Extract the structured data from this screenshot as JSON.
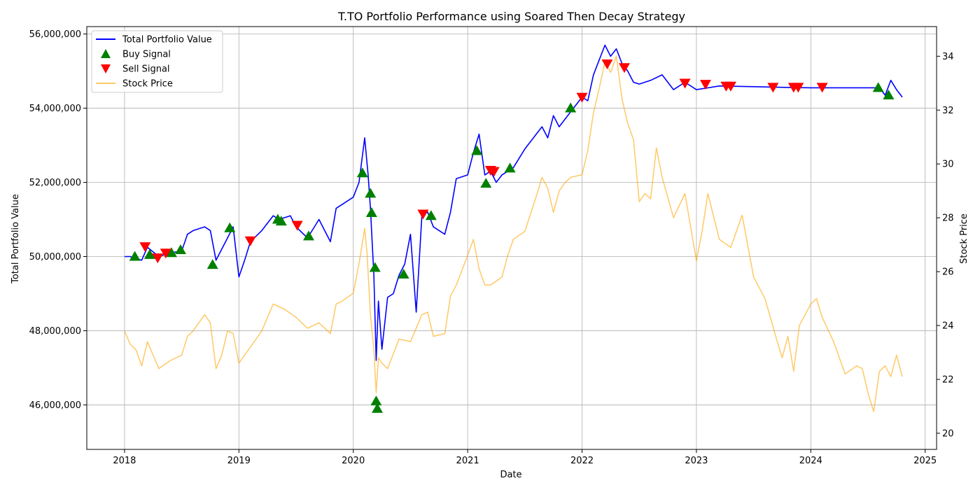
{
  "chart_data": {
    "type": "line",
    "title": "T.TO Portfolio Performance using Soared Then Decay Strategy",
    "xlabel": "Date",
    "ylabel_left": "Total Portfolio Value",
    "ylabel_right": "Stock Price",
    "x_ticks": [
      "2018",
      "2019",
      "2020",
      "2021",
      "2022",
      "2023",
      "2024",
      "2025"
    ],
    "y_left_ticks": [
      "46,000,000",
      "48,000,000",
      "50,000,000",
      "52,000,000",
      "54,000,000",
      "56,000,000"
    ],
    "y_left_tick_values": [
      46000000,
      48000000,
      50000000,
      52000000,
      54000000,
      56000000
    ],
    "y_right_ticks": [
      "20",
      "22",
      "24",
      "26",
      "28",
      "30",
      "32",
      "34"
    ],
    "y_right_tick_values": [
      20,
      22,
      24,
      26,
      28,
      30,
      32,
      34
    ],
    "xlim": [
      2017.67,
      2025.1
    ],
    "ylim_left": [
      44800000,
      56200000
    ],
    "ylim_right": [
      19.4,
      35.1
    ],
    "grid": true,
    "legend_position": "top-left",
    "colors": {
      "portfolio": "#0000ff",
      "buy": "#008000",
      "sell": "#ff0000",
      "stock": "#ffa500"
    },
    "legend": [
      {
        "label": "Total Portfolio Value",
        "kind": "line",
        "color": "#0000ff"
      },
      {
        "label": "Buy Signal",
        "kind": "triangle-up",
        "color": "#008000"
      },
      {
        "label": "Sell Signal",
        "kind": "triangle-down",
        "color": "#ff0000"
      },
      {
        "label": "Stock Price",
        "kind": "line",
        "color": "#ffa500"
      }
    ],
    "series": [
      {
        "name": "Total Portfolio Value",
        "axis": "left",
        "x": [
          2018.0,
          2018.05,
          2018.1,
          2018.15,
          2018.2,
          2018.3,
          2018.4,
          2018.5,
          2018.55,
          2018.6,
          2018.7,
          2018.75,
          2018.8,
          2018.9,
          2018.95,
          2019.0,
          2019.05,
          2019.1,
          2019.2,
          2019.3,
          2019.35,
          2019.45,
          2019.5,
          2019.6,
          2019.7,
          2019.8,
          2019.85,
          2019.9,
          2020.0,
          2020.05,
          2020.1,
          2020.13,
          2020.15,
          2020.18,
          2020.2,
          2020.22,
          2020.25,
          2020.3,
          2020.35,
          2020.4,
          2020.45,
          2020.5,
          2020.55,
          2020.6,
          2020.65,
          2020.7,
          2020.8,
          2020.85,
          2020.9,
          2021.0,
          2021.05,
          2021.1,
          2021.15,
          2021.2,
          2021.25,
          2021.3,
          2021.35,
          2021.4,
          2021.5,
          2021.6,
          2021.65,
          2021.7,
          2021.75,
          2021.8,
          2021.9,
          2022.0,
          2022.05,
          2022.1,
          2022.15,
          2022.2,
          2022.25,
          2022.3,
          2022.35,
          2022.4,
          2022.45,
          2022.5,
          2022.6,
          2022.7,
          2022.8,
          2022.9,
          2023.0,
          2023.2,
          2023.5,
          2023.8,
          2024.0,
          2024.3,
          2024.55,
          2024.6,
          2024.65,
          2024.7,
          2024.75,
          2024.8
        ],
        "values": [
          50000000,
          50000000,
          49950000,
          49900000,
          50250000,
          50000000,
          50100000,
          50150000,
          50600000,
          50700000,
          50800000,
          50700000,
          49900000,
          50500000,
          50800000,
          49450000,
          49900000,
          50400000,
          50700000,
          51100000,
          51000000,
          51100000,
          50800000,
          50500000,
          51000000,
          50400000,
          51300000,
          51400000,
          51600000,
          52000000,
          53200000,
          52200000,
          51300000,
          49500000,
          47200000,
          48800000,
          47500000,
          48900000,
          49000000,
          49500000,
          49800000,
          50600000,
          48500000,
          51100000,
          51200000,
          50800000,
          50600000,
          51200000,
          52100000,
          52200000,
          52800000,
          53300000,
          52200000,
          52300000,
          52000000,
          52200000,
          52300000,
          52400000,
          52900000,
          53300000,
          53500000,
          53200000,
          53800000,
          53500000,
          53900000,
          54300000,
          54200000,
          54900000,
          55300000,
          55700000,
          55400000,
          55600000,
          55200000,
          55000000,
          54700000,
          54650000,
          54750000,
          54900000,
          54500000,
          54700000,
          54500000,
          54600000,
          54580000,
          54560000,
          54550000,
          54550000,
          54550000,
          54550000,
          54350000,
          54750000,
          54500000,
          54300000
        ]
      },
      {
        "name": "Stock Price",
        "axis": "right",
        "x": [
          2018.0,
          2018.05,
          2018.1,
          2018.15,
          2018.2,
          2018.3,
          2018.4,
          2018.5,
          2018.55,
          2018.6,
          2018.7,
          2018.75,
          2018.8,
          2018.85,
          2018.9,
          2018.95,
          2019.0,
          2019.1,
          2019.2,
          2019.3,
          2019.4,
          2019.5,
          2019.6,
          2019.7,
          2019.8,
          2019.85,
          2019.9,
          2020.0,
          2020.05,
          2020.1,
          2020.12,
          2020.15,
          2020.18,
          2020.2,
          2020.22,
          2020.25,
          2020.3,
          2020.4,
          2020.5,
          2020.6,
          2020.65,
          2020.7,
          2020.8,
          2020.85,
          2020.9,
          2021.0,
          2021.05,
          2021.1,
          2021.15,
          2021.2,
          2021.3,
          2021.35,
          2021.4,
          2021.5,
          2021.6,
          2021.65,
          2021.7,
          2021.75,
          2021.8,
          2021.85,
          2021.9,
          2022.0,
          2022.05,
          2022.1,
          2022.15,
          2022.2,
          2022.25,
          2022.3,
          2022.35,
          2022.4,
          2022.45,
          2022.5,
          2022.55,
          2022.6,
          2022.65,
          2022.7,
          2022.8,
          2022.9,
          2023.0,
          2023.05,
          2023.1,
          2023.2,
          2023.3,
          2023.4,
          2023.5,
          2023.6,
          2023.7,
          2023.75,
          2023.8,
          2023.85,
          2023.9,
          2024.0,
          2024.05,
          2024.1,
          2024.2,
          2024.3,
          2024.4,
          2024.45,
          2024.5,
          2024.55,
          2024.6,
          2024.65,
          2024.7,
          2024.75,
          2024.8
        ],
        "values": [
          23.8,
          23.3,
          23.1,
          22.5,
          23.4,
          22.4,
          22.7,
          22.9,
          23.6,
          23.8,
          24.4,
          24.1,
          22.4,
          22.9,
          23.8,
          23.7,
          22.6,
          23.2,
          23.8,
          24.8,
          24.6,
          24.3,
          23.9,
          24.1,
          23.7,
          24.8,
          24.9,
          25.2,
          26.3,
          27.6,
          26.7,
          24.4,
          23.1,
          21.5,
          22.8,
          22.6,
          22.4,
          23.5,
          23.4,
          24.4,
          24.5,
          23.6,
          23.7,
          25.1,
          25.5,
          26.6,
          27.2,
          26.1,
          25.5,
          25.5,
          25.8,
          26.6,
          27.2,
          27.5,
          28.8,
          29.5,
          29.1,
          28.2,
          29.0,
          29.3,
          29.5,
          29.6,
          30.5,
          31.9,
          32.8,
          33.8,
          33.4,
          34.0,
          32.4,
          31.5,
          30.9,
          28.6,
          28.9,
          28.7,
          30.6,
          29.5,
          28.0,
          28.9,
          26.4,
          27.5,
          28.9,
          27.2,
          26.9,
          28.1,
          25.8,
          25.0,
          23.5,
          22.8,
          23.6,
          22.3,
          24.0,
          24.8,
          25.0,
          24.3,
          23.4,
          22.2,
          22.5,
          22.4,
          21.5,
          20.8,
          22.3,
          22.5,
          22.1,
          22.9,
          22.1
        ]
      }
    ],
    "buy_signals": [
      {
        "x": 2018.09,
        "y": 50000000
      },
      {
        "x": 2018.22,
        "y": 50050000
      },
      {
        "x": 2018.41,
        "y": 50100000
      },
      {
        "x": 2018.49,
        "y": 50180000
      },
      {
        "x": 2018.77,
        "y": 49780000
      },
      {
        "x": 2018.92,
        "y": 50770000
      },
      {
        "x": 2019.34,
        "y": 51000000
      },
      {
        "x": 2019.37,
        "y": 50950000
      },
      {
        "x": 2019.61,
        "y": 50550000
      },
      {
        "x": 2020.08,
        "y": 52250000
      },
      {
        "x": 2020.15,
        "y": 51700000
      },
      {
        "x": 2020.16,
        "y": 51180000
      },
      {
        "x": 2020.19,
        "y": 49700000
      },
      {
        "x": 2020.2,
        "y": 46100000
      },
      {
        "x": 2020.21,
        "y": 45900000
      },
      {
        "x": 2020.44,
        "y": 49520000
      },
      {
        "x": 2020.68,
        "y": 51100000
      },
      {
        "x": 2021.08,
        "y": 52850000
      },
      {
        "x": 2021.16,
        "y": 51970000
      },
      {
        "x": 2021.37,
        "y": 52380000
      },
      {
        "x": 2021.9,
        "y": 54000000
      },
      {
        "x": 2024.59,
        "y": 54550000
      },
      {
        "x": 2024.68,
        "y": 54350000
      }
    ],
    "sell_signals": [
      {
        "x": 2018.18,
        "y": 50270000
      },
      {
        "x": 2018.29,
        "y": 49970000
      },
      {
        "x": 2018.36,
        "y": 50100000
      },
      {
        "x": 2019.1,
        "y": 50430000
      },
      {
        "x": 2019.51,
        "y": 50850000
      },
      {
        "x": 2020.61,
        "y": 51150000
      },
      {
        "x": 2021.2,
        "y": 52330000
      },
      {
        "x": 2021.23,
        "y": 52300000
      },
      {
        "x": 2022.0,
        "y": 54300000
      },
      {
        "x": 2022.22,
        "y": 55200000
      },
      {
        "x": 2022.37,
        "y": 55100000
      },
      {
        "x": 2022.9,
        "y": 54680000
      },
      {
        "x": 2023.08,
        "y": 54650000
      },
      {
        "x": 2023.26,
        "y": 54600000
      },
      {
        "x": 2023.3,
        "y": 54600000
      },
      {
        "x": 2023.67,
        "y": 54570000
      },
      {
        "x": 2023.85,
        "y": 54570000
      },
      {
        "x": 2023.89,
        "y": 54570000
      },
      {
        "x": 2024.1,
        "y": 54570000
      }
    ]
  }
}
